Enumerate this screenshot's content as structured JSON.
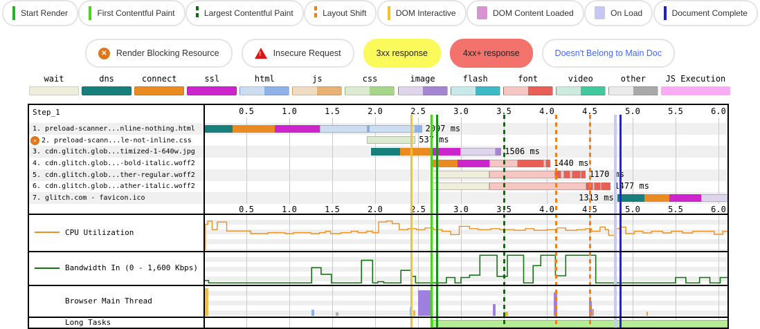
{
  "legend_events": {
    "items": [
      {
        "label": "Start Render",
        "marker": "line",
        "color": "#28b228"
      },
      {
        "label": "First Contentful Paint",
        "marker": "line",
        "color": "#4bd41f"
      },
      {
        "label": "Largest Contentful Paint",
        "marker": "dashed",
        "color": "#0d6e0d"
      },
      {
        "label": "Layout Shift",
        "marker": "dashed",
        "color": "#f08018"
      },
      {
        "label": "DOM Interactive",
        "marker": "line",
        "color": "#f2c12e"
      },
      {
        "label": "DOM Content Loaded",
        "marker": "square",
        "color": "#d893d3"
      },
      {
        "label": "On Load",
        "marker": "square",
        "color": "#c7c7f3"
      },
      {
        "label": "Document Complete",
        "marker": "line",
        "color": "#1d1de0"
      }
    ]
  },
  "legend_flags": {
    "items": [
      {
        "label": "Render Blocking Resource",
        "icon": "blocked-circle",
        "bg": "#ffffff",
        "text_color": "#333333"
      },
      {
        "label": "Insecure Request",
        "icon": "warning-triangle",
        "bg": "#ffffff",
        "text_color": "#333333"
      },
      {
        "label": "3xx response",
        "icon": "none",
        "bg": "#fafa5a",
        "text_color": "#222222"
      },
      {
        "label": "4xx+ response",
        "icon": "none",
        "bg": "#f3726b",
        "text_color": "#222222"
      },
      {
        "label": "Doesn't Belong to Main Doc",
        "icon": "none",
        "bg": "#ffffff",
        "text_color": "#4468f5"
      }
    ]
  },
  "resource_legend": {
    "items": [
      {
        "label": "wait",
        "light": "#efeedc",
        "dark": "#efeedc"
      },
      {
        "label": "dns",
        "light": "#17807c",
        "dark": "#17807c"
      },
      {
        "label": "connect",
        "light": "#ea8a22",
        "dark": "#ea8a22"
      },
      {
        "label": "ssl",
        "light": "#cb25cb",
        "dark": "#cb25cb"
      },
      {
        "label": "html",
        "light": "#ccdcf1",
        "dark": "#8fb3e9"
      },
      {
        "label": "js",
        "light": "#f0dcc0",
        "dark": "#e8b277"
      },
      {
        "label": "css",
        "light": "#dcead0",
        "dark": "#a5d68a"
      },
      {
        "label": "image",
        "light": "#ded5ec",
        "dark": "#a685d3"
      },
      {
        "label": "flash",
        "light": "#c8e9e9",
        "dark": "#3fb9c6"
      },
      {
        "label": "font",
        "light": "#f5c6c2",
        "dark": "#e75f55"
      },
      {
        "label": "video",
        "light": "#cdeade",
        "dark": "#43c79d"
      },
      {
        "label": "other",
        "light": "#ebebeb",
        "dark": "#a9a9a9"
      },
      {
        "label": "JS Execution",
        "light": "#f9abf3",
        "dark": "#f9abf3"
      }
    ]
  },
  "palette": {
    "wait": "#efeedc",
    "dns": "#17807c",
    "connect": "#ea8a22",
    "ssl": "#cb25cb",
    "htmlL": "#ccdcf1",
    "htmlD": "#8fb3e9",
    "htmlDiv": "#7fa8e6",
    "cssL": "#dcead0",
    "imgL": "#ded5ec",
    "imgD": "#a685d3",
    "fontL": "#f5c6c2",
    "fontD": "#e75f55"
  },
  "waterfall": {
    "step_label": "Step_1",
    "tick_labels": [
      "0.5",
      "1.0",
      "1.5",
      "2.0",
      "2.5",
      "3.0",
      "3.5",
      "4.0",
      "4.5",
      "5.0",
      "5.5",
      "6.0"
    ],
    "rows": [
      {
        "label": "1. preload-scanner...nline-nothing.html",
        "blocked": false,
        "duration": "2097 ms",
        "label_side": "right",
        "segments": [
          [
            "dns",
            20,
            340
          ],
          [
            "connect",
            340,
            830
          ],
          [
            "ssl",
            830,
            1355
          ],
          [
            "htmlL",
            1355,
            1915
          ],
          [
            "htmlDiv",
            1915,
            1930
          ],
          [
            "htmlL",
            1930,
            2465
          ],
          [
            "htmlD",
            2465,
            2545
          ]
        ]
      },
      {
        "label": "2. preload-scann...le-not-inline.css",
        "blocked": true,
        "duration": "537 ms",
        "label_side": "right",
        "segments": [
          [
            "cssL",
            1900,
            2470
          ]
        ]
      },
      {
        "label": "3. cdn.glitch.glob...timized-1-640w.jpg",
        "blocked": false,
        "duration": "1506 ms",
        "label_side": "right",
        "segments": [
          [
            "dns",
            1950,
            2290
          ],
          [
            "connect",
            2290,
            2660
          ],
          [
            "ssl",
            2660,
            2990
          ],
          [
            "imgL",
            2990,
            3400
          ],
          [
            "imgD",
            3400,
            3470
          ]
        ]
      },
      {
        "label": "4. cdn.glitch.glob...-bold-italic.woff2",
        "blocked": false,
        "duration": "1440 ms",
        "label_side": "right",
        "segments": [
          [
            "connect",
            2650,
            2960
          ],
          [
            "ssl",
            2960,
            3330
          ],
          [
            "fontL",
            3330,
            3660
          ],
          [
            "fontD",
            3660,
            3960
          ],
          [
            "fontL",
            3960,
            3995
          ],
          [
            "fontD",
            3995,
            4040
          ]
        ]
      },
      {
        "label": "5. cdn.glitch.glob...ther-regular.woff2",
        "blocked": false,
        "duration": "1170 ms",
        "label_side": "right",
        "segments": [
          [
            "wait",
            2650,
            3330
          ],
          [
            "fontL",
            3330,
            4100
          ],
          [
            "fontD",
            4100,
            4160
          ],
          [
            "fontL",
            4160,
            4200
          ],
          [
            "fontD",
            4200,
            4265
          ],
          [
            "fontL",
            4265,
            4295
          ],
          [
            "fontD",
            4295,
            4385
          ],
          [
            "fontL",
            4385,
            4405
          ],
          [
            "fontD",
            4405,
            4455
          ]
        ]
      },
      {
        "label": "6. cdn.glitch.glob...ather-italic.woff2",
        "blocked": false,
        "duration": "1477 ms",
        "label_side": "right",
        "segments": [
          [
            "wait",
            2650,
            3330
          ],
          [
            "fontL",
            3330,
            4460
          ],
          [
            "fontD",
            4460,
            4530
          ],
          [
            "fontL",
            4530,
            4560
          ],
          [
            "fontD",
            4560,
            4620
          ],
          [
            "fontL",
            4620,
            4640
          ],
          [
            "fontD",
            4640,
            4745
          ]
        ]
      },
      {
        "label": "7. glitch.com - favicon.ico",
        "blocked": false,
        "duration": "1313 ms",
        "label_side": "left",
        "segments": [
          [
            "dns",
            4820,
            5140
          ],
          [
            "connect",
            5140,
            5430
          ],
          [
            "ssl",
            5430,
            5800
          ],
          [
            "imgL",
            5800,
            6140
          ]
        ]
      }
    ],
    "events": [
      {
        "name": "dom-interactive",
        "ms": 2420,
        "color": "#f5c518",
        "style": "solid",
        "w": 3
      },
      {
        "name": "first-contentful-paint",
        "ms": 2660,
        "color": "#4ad41c",
        "style": "solid",
        "w": 3
      },
      {
        "name": "start-render",
        "ms": 2720,
        "color": "#149414",
        "style": "solid",
        "w": 3
      },
      {
        "name": "largest-contentful-paint",
        "ms": 3500,
        "color": "#0b6e0b",
        "style": "dashed",
        "w": 3
      },
      {
        "name": "layout-shift-1",
        "ms": 4110,
        "color": "#f08018",
        "style": "dashed",
        "w": 3
      },
      {
        "name": "layout-shift-2",
        "ms": 4500,
        "color": "#f08018",
        "style": "dashed",
        "w": 3
      },
      {
        "name": "on-load",
        "ms": 4800,
        "color": "#c9c9f7",
        "style": "solid",
        "w": 4
      },
      {
        "name": "document-complete",
        "ms": 4855,
        "color": "#2020dd",
        "style": "solid",
        "w": 3
      }
    ]
  },
  "cpu": {
    "label": "CPU Utilization",
    "color": "#ef8f1f",
    "points": [
      [
        0,
        2
      ],
      [
        0.02,
        78
      ],
      [
        0.05,
        88
      ],
      [
        0.1,
        62
      ],
      [
        0.16,
        85
      ],
      [
        0.27,
        58
      ],
      [
        0.55,
        50
      ],
      [
        0.75,
        53
      ],
      [
        0.95,
        50
      ],
      [
        1.05,
        53
      ],
      [
        1.25,
        50
      ],
      [
        1.35,
        53
      ],
      [
        1.42,
        57
      ],
      [
        1.48,
        50
      ],
      [
        1.6,
        53
      ],
      [
        1.72,
        57
      ],
      [
        1.8,
        53
      ],
      [
        1.9,
        57
      ],
      [
        1.97,
        53
      ],
      [
        2.04,
        85
      ],
      [
        2.13,
        88
      ],
      [
        2.2,
        80
      ],
      [
        2.28,
        62
      ],
      [
        2.38,
        65
      ],
      [
        2.48,
        62
      ],
      [
        2.58,
        67
      ],
      [
        2.68,
        62
      ],
      [
        2.78,
        57
      ],
      [
        2.88,
        47
      ],
      [
        2.98,
        72
      ],
      [
        3.1,
        65
      ],
      [
        3.2,
        62
      ],
      [
        3.35,
        65
      ],
      [
        3.45,
        62
      ],
      [
        3.62,
        60
      ],
      [
        3.75,
        65
      ],
      [
        3.85,
        60
      ],
      [
        4.0,
        62
      ],
      [
        4.12,
        67
      ],
      [
        4.22,
        60
      ],
      [
        4.35,
        62
      ],
      [
        4.45,
        65
      ],
      [
        4.52,
        57
      ],
      [
        4.62,
        70
      ],
      [
        4.68,
        62
      ],
      [
        4.72,
        45
      ],
      [
        4.8,
        65
      ],
      [
        4.85,
        70
      ],
      [
        4.92,
        50
      ],
      [
        5.02,
        57
      ],
      [
        5.12,
        52
      ],
      [
        5.22,
        57
      ],
      [
        5.35,
        52
      ],
      [
        5.45,
        57
      ],
      [
        5.58,
        52
      ],
      [
        5.7,
        57
      ],
      [
        5.95,
        48
      ],
      [
        6.05,
        57
      ],
      [
        6.14,
        57
      ]
    ]
  },
  "bandwidth": {
    "label": "Bandwidth In (0 - 1,600 Kbps)",
    "color": "#117711",
    "points": [
      [
        0,
        12
      ],
      [
        0.06,
        4
      ],
      [
        1.26,
        55
      ],
      [
        1.37,
        33
      ],
      [
        1.49,
        4
      ],
      [
        1.84,
        80
      ],
      [
        1.97,
        4
      ],
      [
        2.03,
        8
      ],
      [
        2.1,
        4
      ],
      [
        2.3,
        46
      ],
      [
        2.42,
        26
      ],
      [
        2.47,
        4
      ],
      [
        2.83,
        22
      ],
      [
        2.93,
        4
      ],
      [
        3.0,
        22
      ],
      [
        3.1,
        30
      ],
      [
        3.22,
        97
      ],
      [
        3.42,
        26
      ],
      [
        3.54,
        97
      ],
      [
        3.73,
        4
      ],
      [
        3.84,
        62
      ],
      [
        3.93,
        97
      ],
      [
        4.1,
        28
      ],
      [
        4.22,
        97
      ],
      [
        4.57,
        4
      ],
      [
        5.5,
        22
      ],
      [
        5.62,
        4
      ],
      [
        5.78,
        22
      ],
      [
        5.9,
        4
      ],
      [
        6.02,
        22
      ],
      [
        6.14,
        22
      ]
    ]
  },
  "main_thread": {
    "label": "Browser Main Thread",
    "bars": [
      [
        0,
        60,
        95,
        "#ecbf55"
      ],
      [
        1260,
        1290,
        22,
        "#8ab4e8"
      ],
      [
        1540,
        1570,
        12,
        "#b0b0b0"
      ],
      [
        2400,
        2430,
        30,
        "#8ab4e8"
      ],
      [
        2440,
        2470,
        20,
        "#f0b43c"
      ],
      [
        2500,
        2670,
        88,
        "#9f7fdf"
      ],
      [
        3370,
        3400,
        40,
        "#9f7fdf"
      ],
      [
        3520,
        3545,
        14,
        "#e0c030"
      ],
      [
        4080,
        4120,
        82,
        "#9f7fdf"
      ],
      [
        4490,
        4525,
        50,
        "#9f7fdf"
      ],
      [
        4525,
        4545,
        25,
        "#f0a030"
      ],
      [
        4780,
        4810,
        75,
        "#9f7fdf"
      ],
      [
        5160,
        5180,
        14,
        "#f0a030"
      ]
    ]
  },
  "long_tasks": {
    "label": "Long Tasks",
    "bars": [
      [
        2670,
        6140
      ]
    ],
    "fill": "#b7eb96",
    "border": "#86c966"
  },
  "chart_data": {
    "type": "waterfall",
    "title": "Step_1",
    "x_unit": "seconds",
    "x_ticks": [
      0.5,
      1.0,
      1.5,
      2.0,
      2.5,
      3.0,
      3.5,
      4.0,
      4.5,
      5.0,
      5.5,
      6.0
    ],
    "requests": [
      {
        "name": "1. preload-scanner...nline-nothing.html",
        "duration_label": "2097 ms"
      },
      {
        "name": "2. preload-scann...le-not-inline.css",
        "duration_label": "537 ms",
        "render_blocking": true
      },
      {
        "name": "3. cdn.glitch.glob...timized-1-640w.jpg",
        "duration_label": "1506 ms"
      },
      {
        "name": "4. cdn.glitch.glob...-bold-italic.woff2",
        "duration_label": "1440 ms"
      },
      {
        "name": "5. cdn.glitch.glob...ther-regular.woff2",
        "duration_label": "1170 ms"
      },
      {
        "name": "6. cdn.glitch.glob...ather-italic.woff2",
        "duration_label": "1477 ms"
      },
      {
        "name": "7. glitch.com - favicon.ico",
        "duration_label": "1313 ms"
      }
    ],
    "events_ms": {
      "dom_interactive": 2420,
      "first_contentful_paint": 2660,
      "start_render": 2720,
      "largest_contentful_paint": 3500,
      "layout_shifts": [
        4110,
        4500
      ],
      "on_load": 4800,
      "document_complete": 4855
    }
  }
}
